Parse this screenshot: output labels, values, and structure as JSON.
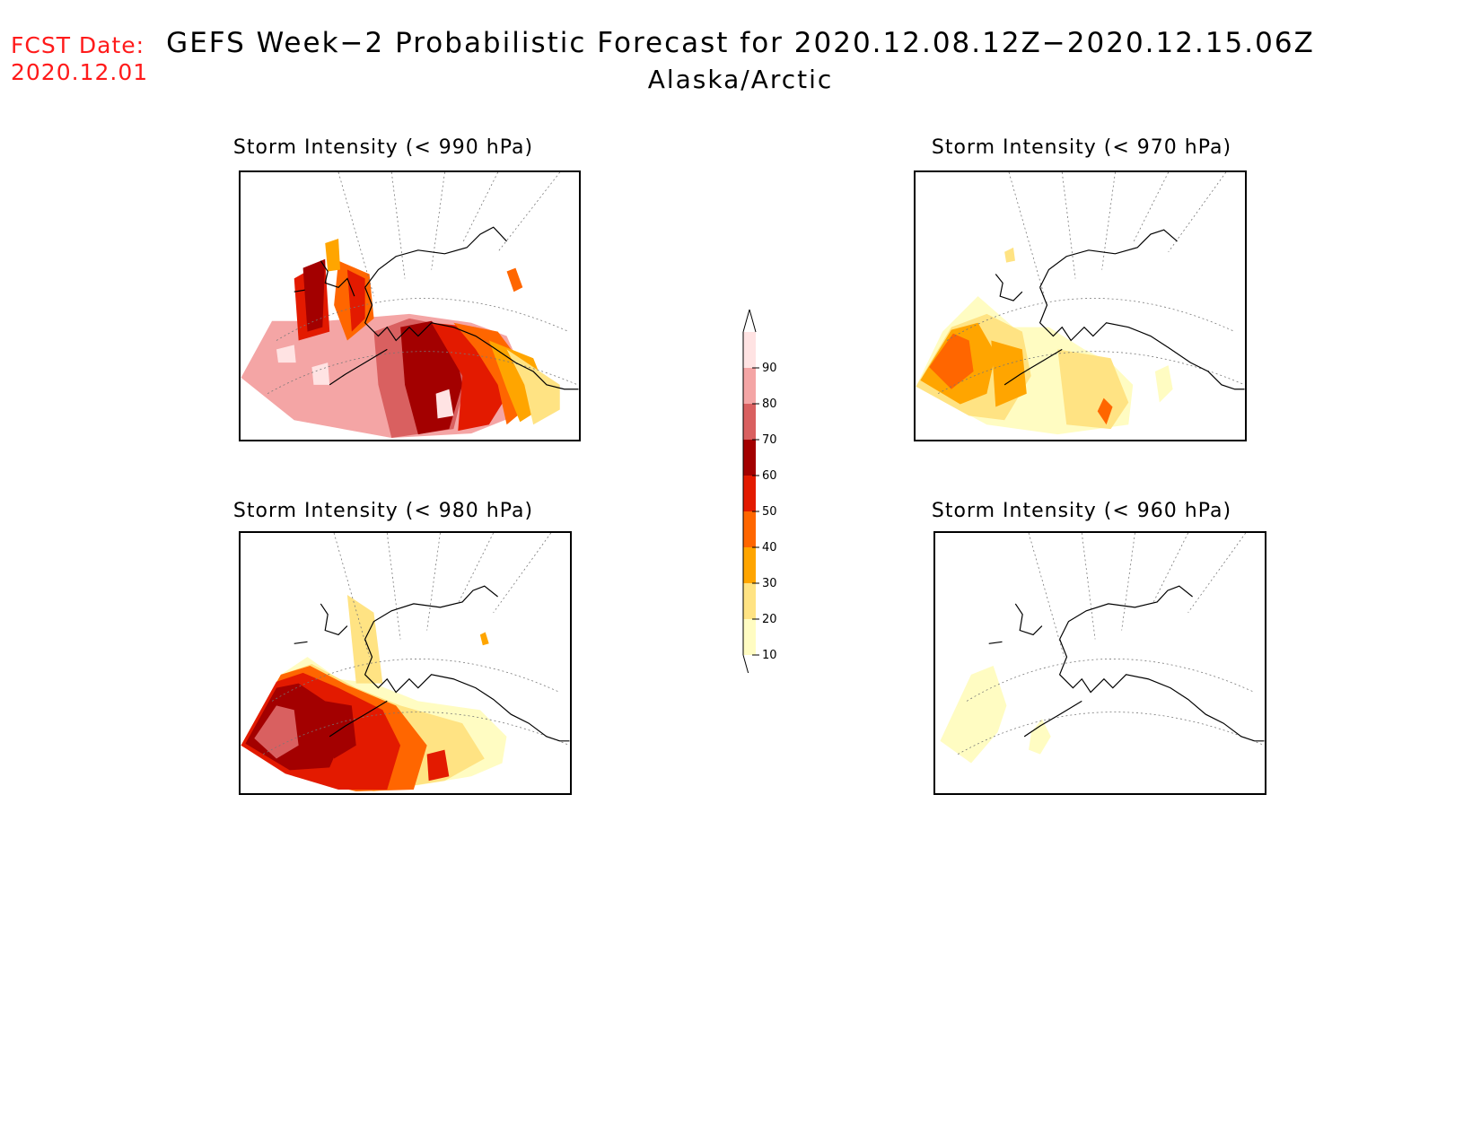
{
  "header": {
    "fcst_label": "FCST Date:",
    "fcst_date": "2020.12.01",
    "title": "GEFS Week−2 Probabilistic Forecast for 2020.12.08.12Z−2020.12.15.06Z",
    "region": "Alaska/Arctic"
  },
  "panels": [
    {
      "title": "Storm Intensity (< 990 hPa)",
      "threshold": 990
    },
    {
      "title": "Storm Intensity (< 970 hPa)",
      "threshold": 970
    },
    {
      "title": "Storm Intensity (< 980 hPa)",
      "threshold": 980
    },
    {
      "title": "Storm Intensity (< 960 hPa)",
      "threshold": 960
    }
  ],
  "colorbar": {
    "units": "percent",
    "levels": [
      10,
      20,
      30,
      40,
      50,
      60,
      70,
      80,
      90
    ],
    "colors": [
      "#fffcc2",
      "#ffe383",
      "#ffa500",
      "#ff6600",
      "#e31a00",
      "#a30000",
      "#d96060",
      "#f4a5a5",
      "#ffe3e3"
    ]
  }
}
